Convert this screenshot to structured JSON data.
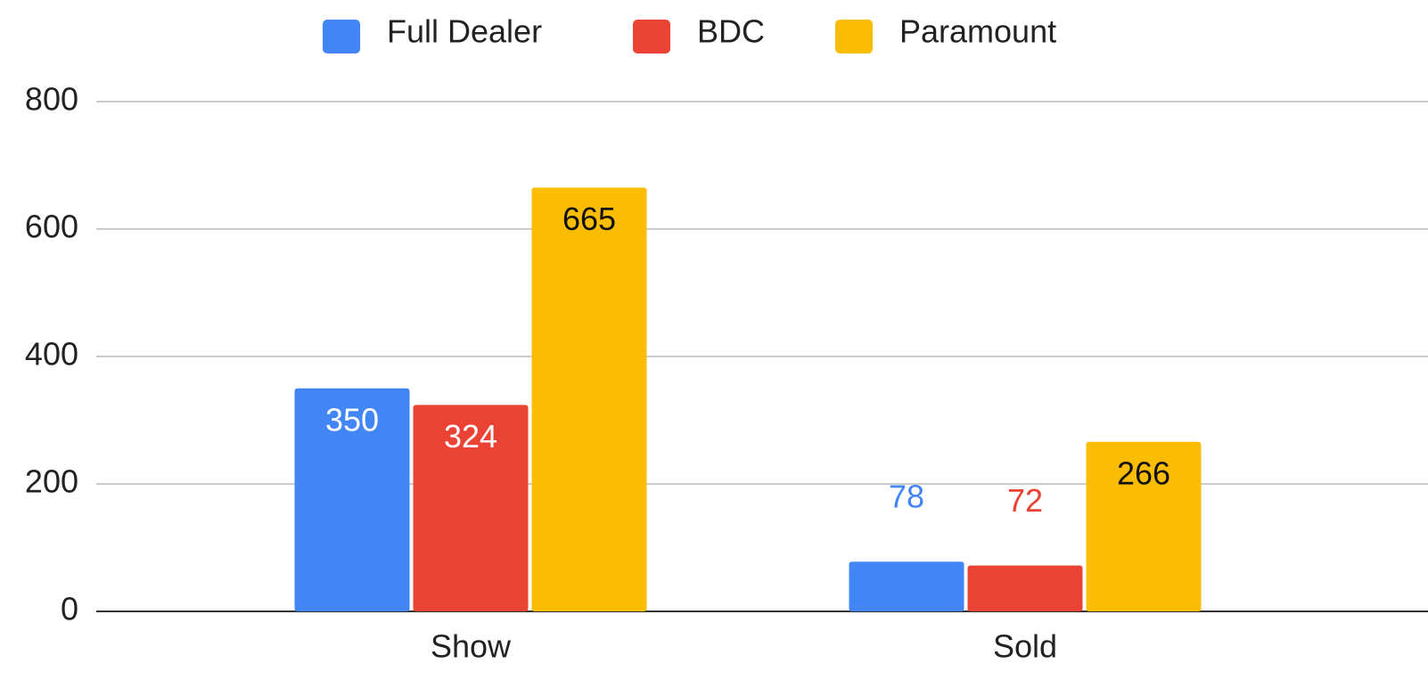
{
  "chart_data": {
    "type": "bar",
    "categories": [
      "Show",
      "Sold"
    ],
    "series": [
      {
        "name": "Full Dealer",
        "color": "#4285f4",
        "values": [
          350,
          78
        ]
      },
      {
        "name": "BDC",
        "color": "#ea4335",
        "values": [
          324,
          72
        ]
      },
      {
        "name": "Paramount",
        "color": "#fbbc04",
        "values": [
          665,
          266
        ]
      }
    ],
    "ylim": [
      0,
      800
    ],
    "yticks": [
      0,
      200,
      400,
      600,
      800
    ],
    "grid": true,
    "legend": "top"
  }
}
